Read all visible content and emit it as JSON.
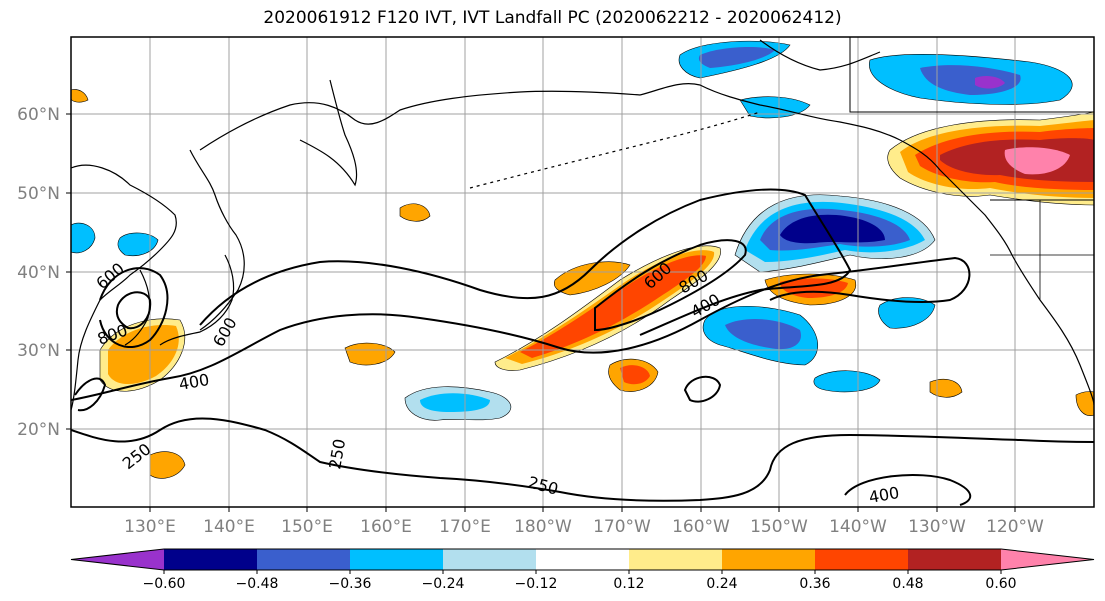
{
  "title": "2020061912 F120 IVT, IVT Landfall PC (2020062212 - 2020062412)",
  "lat_labels": [
    "60°N",
    "50°N",
    "40°N",
    "30°N",
    "20°N"
  ],
  "lon_labels": [
    "130°E",
    "140°E",
    "150°E",
    "160°E",
    "170°E",
    "180°W",
    "170°W",
    "160°W",
    "150°W",
    "140°W",
    "130°W",
    "120°W"
  ],
  "contour_labels": [
    "600",
    "800",
    "600",
    "400",
    "250",
    "600",
    "800",
    "400",
    "250",
    "400",
    "250"
  ],
  "colorbar": {
    "colors": [
      "#9932CC",
      "#00008B",
      "#3A5FCD",
      "#00BFFF",
      "#B2DFEE",
      "#FFFFFF",
      "#FFEC8B",
      "#FFA500",
      "#FF4500",
      "#B22222",
      "#FF82AB"
    ],
    "tick_labels": [
      "−0.60",
      "−0.48",
      "−0.36",
      "−0.24",
      "−0.12",
      "0.12",
      "0.24",
      "0.36",
      "0.48",
      "0.60"
    ]
  }
}
